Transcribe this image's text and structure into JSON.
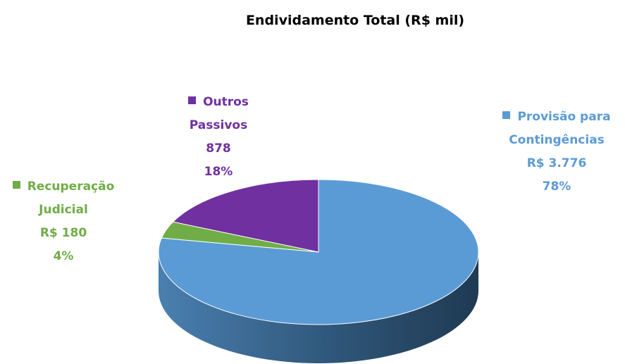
{
  "chart_data": {
    "type": "pie3d",
    "title": "Endividamento Total (R$ mil)",
    "categories": [
      "Provisão para Contingências",
      "Recuperação Judicial",
      "Outros Passivos"
    ],
    "values": [
      3776,
      180,
      878
    ],
    "value_labels": [
      "R$ 3.776",
      "R$ 180",
      "878"
    ],
    "percent_labels": [
      "78%",
      "4%",
      "18%"
    ],
    "colors": [
      "#5b9bd5",
      "#70ad47",
      "#7030a0"
    ]
  }
}
